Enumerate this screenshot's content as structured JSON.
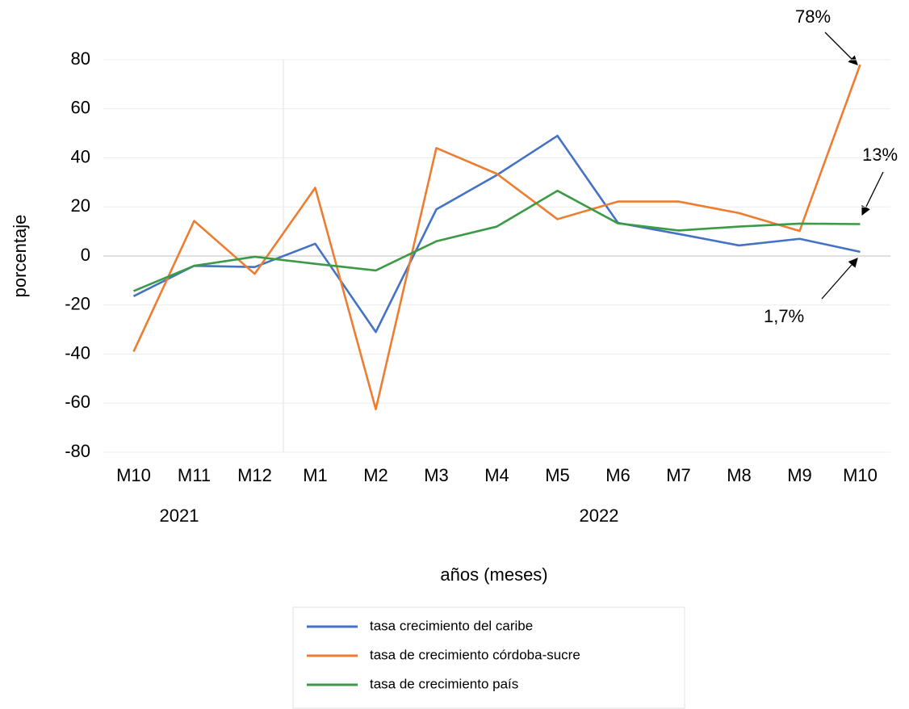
{
  "chart_data": {
    "type": "line",
    "categories": [
      "M10",
      "M11",
      "M12",
      "M1",
      "M2",
      "M3",
      "M4",
      "M5",
      "M6",
      "M7",
      "M8",
      "M9",
      "M10"
    ],
    "x_group_labels": [
      "2021",
      "2022"
    ],
    "series": [
      {
        "name": "tasa crecimiento del caribe",
        "color": "#4472c4",
        "values": [
          -16.4,
          -4,
          -4.5,
          5,
          -31,
          19,
          33,
          49,
          13.5,
          9,
          4.3,
          7,
          1.7
        ]
      },
      {
        "name": "tasa de crecimiento córdoba-sucre",
        "color": "#ed7d31",
        "values": [
          -39,
          14.3,
          -7.3,
          27.8,
          -62.5,
          44,
          33.5,
          15,
          22.2,
          22.2,
          17.5,
          10.2,
          78
        ]
      },
      {
        "name": "tasa de crecimiento país",
        "color": "#3c9a46",
        "values": [
          -14.3,
          -4,
          -0.3,
          -3.2,
          -5.9,
          6,
          12,
          26.6,
          13.3,
          10.4,
          12,
          13.2,
          13
        ]
      }
    ],
    "ylim": [
      -80,
      80
    ],
    "yticks": [
      -80,
      -60,
      -40,
      -20,
      0,
      20,
      40,
      60,
      80
    ],
    "grid": true,
    "ylabel": "porcentaje",
    "xlabel": "años (meses)",
    "legend": "bottom",
    "annotations": [
      "78%",
      "13%",
      "1,7%"
    ]
  }
}
